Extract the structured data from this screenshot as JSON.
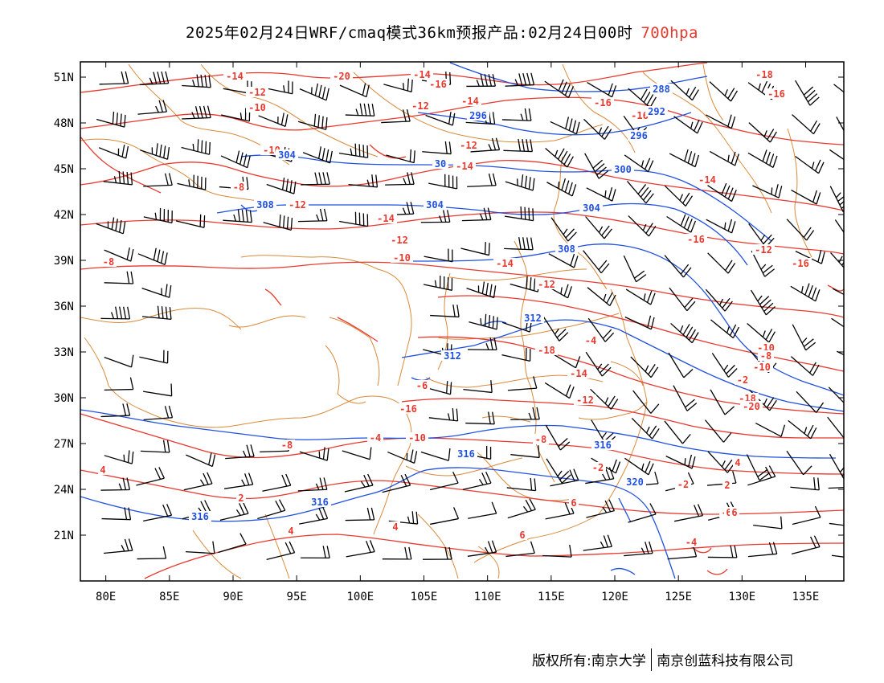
{
  "title": {
    "text": "2025年02月24日WRF/cmaq模式36km预报产品:02月24日00时",
    "level": "700hpa",
    "level_color": "#e8392f"
  },
  "footer": {
    "left": "版权所有:南京大学",
    "right": "南京创蓝科技有限公司"
  },
  "colors": {
    "temperature": "#e8392f",
    "height": "#2050e0",
    "border": "#d98a3a",
    "wind": "#000000",
    "frame": "#000000"
  },
  "map": {
    "lon_range": [
      78,
      138
    ],
    "lat_range": [
      18,
      52
    ],
    "lon_ticks": [
      "80E",
      "85E",
      "90E",
      "95E",
      "100E",
      "105E",
      "110E",
      "115E",
      "120E",
      "125E",
      "130E",
      "135E"
    ],
    "lat_ticks": [
      "21N",
      "24N",
      "27N",
      "30N",
      "33N",
      "36N",
      "39N",
      "42N",
      "45N",
      "48N",
      "51N"
    ],
    "temperature_labels": [
      "-14",
      "-20",
      "-14",
      "-16",
      "-16",
      "-18",
      "-16",
      "-12",
      "-12",
      "-14",
      "-16",
      "-14",
      "-10",
      "-10",
      "-12",
      "-12",
      "-14",
      "-8",
      "-12",
      "-14",
      "-16",
      "-12",
      "-10",
      "-14",
      "-8",
      "-12",
      "-16",
      "-18",
      "-20",
      "-10",
      "-8",
      "-10",
      "-18",
      "-16",
      "-14",
      "-12",
      "-6",
      "-4",
      "-8",
      "-4",
      "-10",
      "-8",
      "-2",
      "4",
      "2",
      "0",
      "2",
      "-2",
      "-2",
      "4",
      "4",
      "6",
      "6",
      "-4",
      "6",
      "6",
      "4",
      "-2"
    ],
    "height_labels": [
      "288",
      "292",
      "296",
      "296",
      "304",
      "30",
      "300",
      "304",
      "304",
      "308",
      "304",
      "308",
      "312",
      "312",
      "316",
      "316",
      "316",
      "316",
      "320"
    ]
  }
}
